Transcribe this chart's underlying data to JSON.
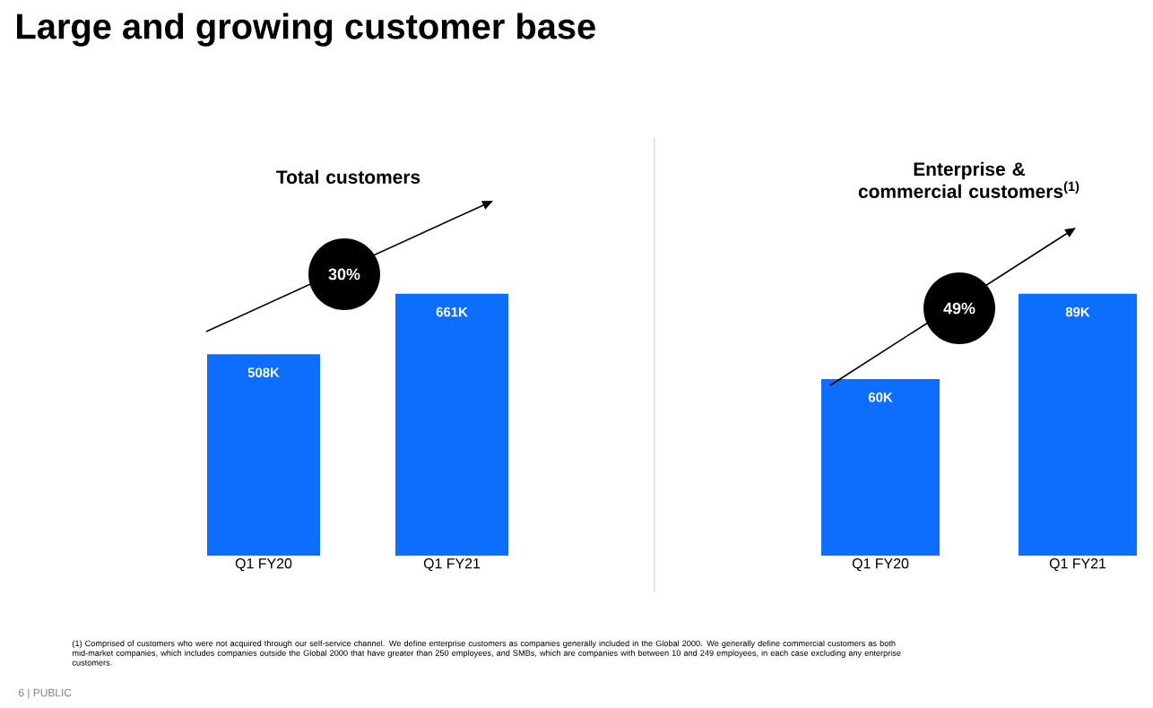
{
  "chart_data": [
    {
      "type": "bar",
      "title": "Total customers",
      "categories": [
        "Q1 FY20",
        "Q1 FY21"
      ],
      "values": [
        508,
        661
      ],
      "value_labels": [
        "508K",
        "661K"
      ],
      "color": "#0d6efd",
      "annotations": [
        "Large and growing customer base",
        "30%"
      ]
    },
    {
      "type": "bar",
      "title": "Enterprise & commercial customers$^{(1)}$",
      "categories": [
        "Q1 FY20",
        "Q1 FY21"
      ],
      "values": [
        60,
        89
      ],
      "value_labels": [
        "60K",
        "89K"
      ],
      "color": "#0d6efd",
      "annotations": [
        "49%",
        "(1) Comprised of customers who were not acquired through our self-service channel. We define enterprise customers as companies generally included in the Global 2000. We generally define commercial customers as both mid-market companies, which includes companies outside the Global 2000 that have greater than 250 employees, and SMBs, which are companies with between 10 and 249 employees, in each case excluding any enterprise customers.",
        "6 | PUBLIC"
      ]
    }
  ]
}
